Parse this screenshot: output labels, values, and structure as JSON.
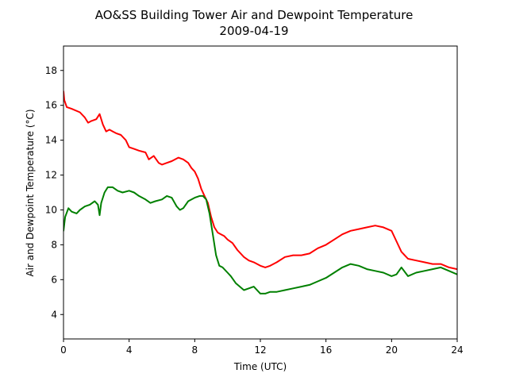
{
  "chart_data": {
    "type": "line",
    "title": "AO&SS Building Tower Air and Dewpoint Temperature",
    "subtitle": "2009-04-19",
    "xlabel": "Time (UTC)",
    "ylabel": "Air and Dewpoint Temperature (°C)",
    "xlim": [
      0,
      24
    ],
    "ylim": [
      2.6,
      19.4
    ],
    "x_ticks": [
      0,
      4,
      8,
      12,
      16,
      20,
      24
    ],
    "y_ticks": [
      4,
      6,
      8,
      10,
      12,
      14,
      16,
      18
    ],
    "x_tick_labels": [
      "0",
      "4",
      "8",
      "12",
      "16",
      "20",
      "24"
    ],
    "y_tick_labels": [
      "4",
      "6",
      "8",
      "10",
      "12",
      "14",
      "16",
      "18"
    ],
    "grid": false,
    "legend": "none",
    "series": [
      {
        "color": "#ff0000",
        "x": [
          0,
          0.05,
          0.2,
          0.5,
          1,
          1.3,
          1.5,
          1.7,
          2,
          2.2,
          2.4,
          2.6,
          2.8,
          3,
          3.2,
          3.5,
          3.8,
          4,
          4.3,
          4.6,
          5,
          5.2,
          5.5,
          5.8,
          6,
          6.3,
          6.6,
          7,
          7.3,
          7.6,
          7.8,
          8,
          8.2,
          8.4,
          8.6,
          8.8,
          9,
          9.2,
          9.4,
          9.6,
          9.8,
          10,
          10.3,
          10.6,
          11,
          11.3,
          11.6,
          12,
          12.3,
          12.6,
          13,
          13.5,
          14,
          14.5,
          15,
          15.5,
          16,
          16.5,
          17,
          17.5,
          18,
          18.5,
          19,
          19.5,
          20,
          20.3,
          20.6,
          21,
          21.5,
          22,
          22.5,
          23,
          23.5,
          24
        ],
        "y": [
          16.8,
          16.3,
          15.9,
          15.8,
          15.6,
          15.3,
          15.0,
          15.1,
          15.2,
          15.5,
          14.9,
          14.5,
          14.6,
          14.5,
          14.4,
          14.3,
          14.0,
          13.6,
          13.5,
          13.4,
          13.3,
          12.9,
          13.1,
          12.7,
          12.6,
          12.7,
          12.8,
          13.0,
          12.9,
          12.7,
          12.4,
          12.2,
          11.8,
          11.2,
          10.8,
          10.4,
          9.6,
          9.0,
          8.7,
          8.6,
          8.5,
          8.3,
          8.1,
          7.7,
          7.3,
          7.1,
          7.0,
          6.8,
          6.7,
          6.8,
          7.0,
          7.3,
          7.4,
          7.4,
          7.5,
          7.8,
          8.0,
          8.3,
          8.6,
          8.8,
          8.9,
          9.0,
          9.1,
          9.0,
          8.8,
          8.2,
          7.6,
          7.2,
          7.1,
          7.0,
          6.9,
          6.9,
          6.7,
          6.6
        ]
      },
      {
        "color": "#008000",
        "x": [
          0,
          0.1,
          0.3,
          0.5,
          0.8,
          1,
          1.3,
          1.6,
          1.9,
          2.1,
          2.2,
          2.3,
          2.5,
          2.7,
          3,
          3.3,
          3.6,
          4,
          4.3,
          4.6,
          5,
          5.3,
          5.6,
          6,
          6.3,
          6.6,
          6.9,
          7.1,
          7.3,
          7.6,
          8,
          8.3,
          8.5,
          8.7,
          8.9,
          9.1,
          9.3,
          9.5,
          9.7,
          10,
          10.2,
          10.5,
          11,
          11.3,
          11.6,
          12,
          12.3,
          12.6,
          13,
          13.5,
          14,
          14.5,
          15,
          15.5,
          16,
          16.5,
          17,
          17.5,
          18,
          18.5,
          19,
          19.5,
          20,
          20.3,
          20.6,
          21,
          21.5,
          22,
          22.5,
          23,
          23.5,
          24
        ],
        "y": [
          8.8,
          9.6,
          10.1,
          9.9,
          9.8,
          10.0,
          10.2,
          10.3,
          10.5,
          10.3,
          9.7,
          10.4,
          11.0,
          11.3,
          11.3,
          11.1,
          11.0,
          11.1,
          11.0,
          10.8,
          10.6,
          10.4,
          10.5,
          10.6,
          10.8,
          10.7,
          10.2,
          10.0,
          10.1,
          10.5,
          10.7,
          10.8,
          10.8,
          10.6,
          9.8,
          8.6,
          7.4,
          6.8,
          6.7,
          6.4,
          6.2,
          5.8,
          5.4,
          5.5,
          5.6,
          5.2,
          5.2,
          5.3,
          5.3,
          5.4,
          5.5,
          5.6,
          5.7,
          5.9,
          6.1,
          6.4,
          6.7,
          6.9,
          6.8,
          6.6,
          6.5,
          6.4,
          6.2,
          6.3,
          6.7,
          6.2,
          6.4,
          6.5,
          6.6,
          6.7,
          6.5,
          6.3
        ]
      }
    ]
  }
}
